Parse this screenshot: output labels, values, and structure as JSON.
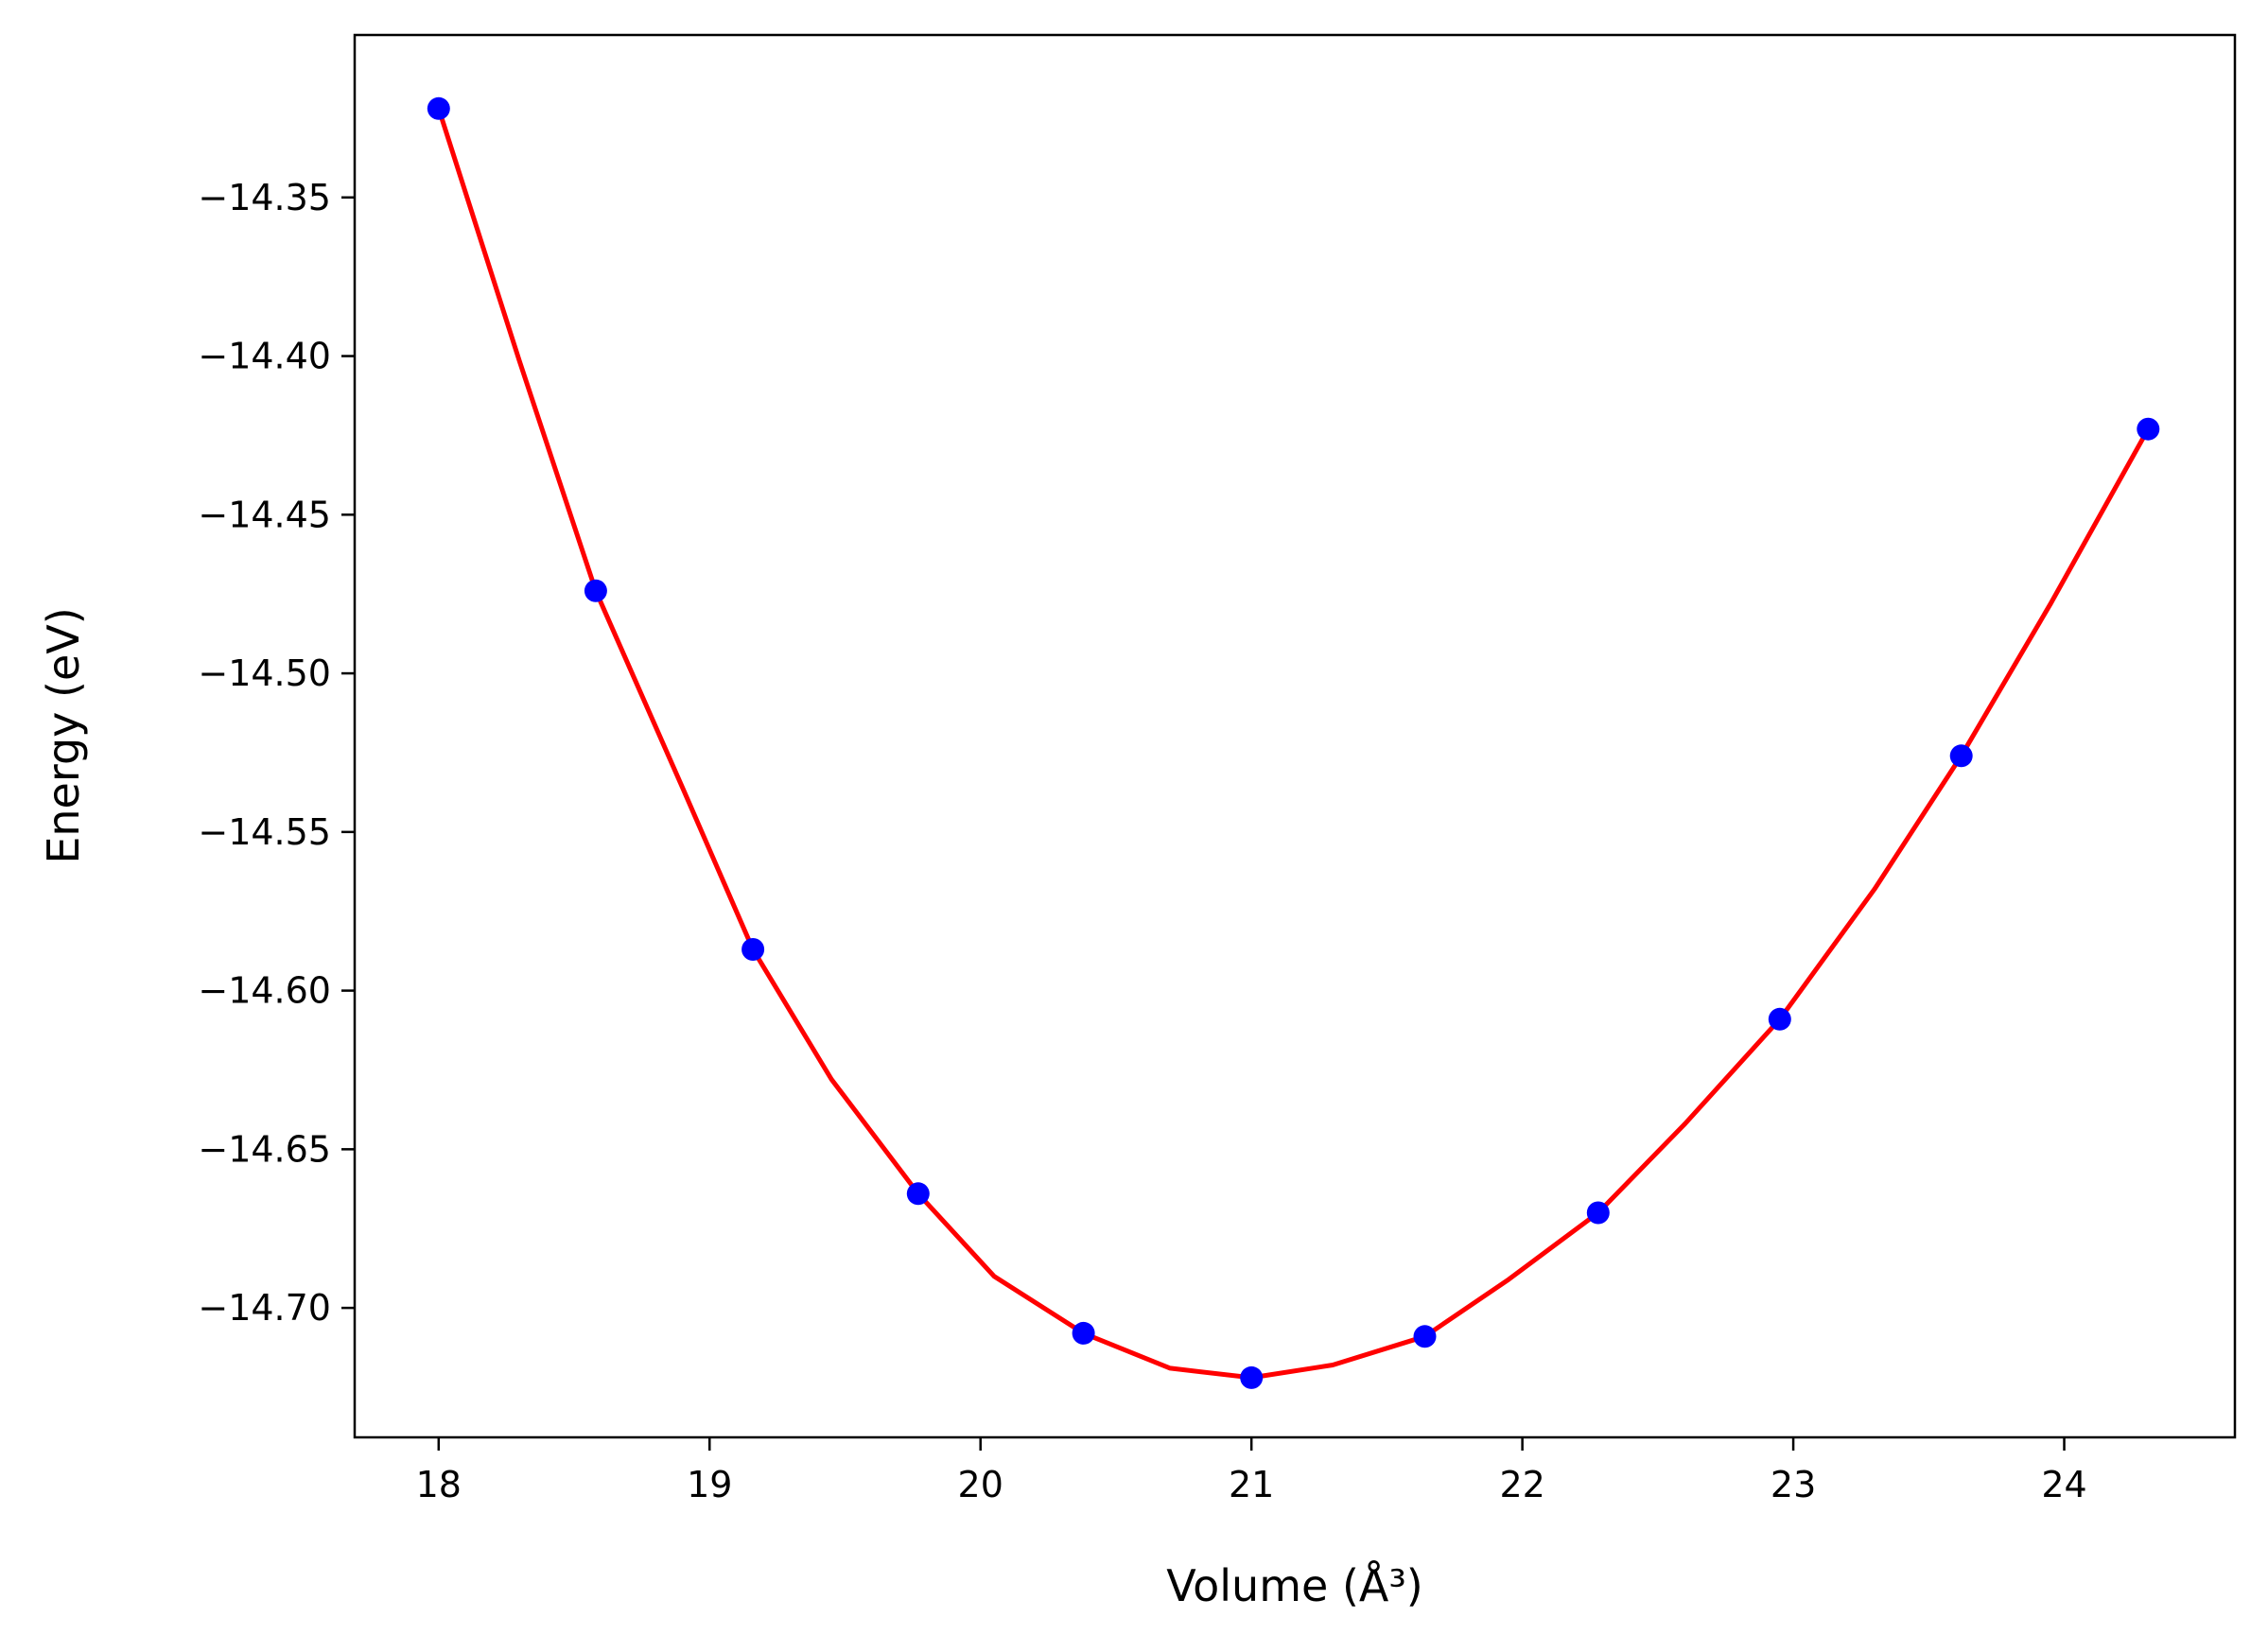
{
  "chart_data": {
    "type": "scatter",
    "title": "",
    "xlabel": "Volume (Å³)",
    "ylabel": "Energy (eV)",
    "xlim": [
      17.69,
      24.63
    ],
    "ylim": [
      -14.7408,
      -14.2988
    ],
    "x_ticks": [
      {
        "value": 18,
        "label": "18"
      },
      {
        "value": 19,
        "label": "19"
      },
      {
        "value": 20,
        "label": "20"
      },
      {
        "value": 21,
        "label": "21"
      },
      {
        "value": 22,
        "label": "22"
      },
      {
        "value": 23,
        "label": "23"
      },
      {
        "value": 24,
        "label": "24"
      }
    ],
    "y_ticks": [
      {
        "value": -14.35,
        "label": "−14.35"
      },
      {
        "value": -14.4,
        "label": "−14.40"
      },
      {
        "value": -14.45,
        "label": "−14.45"
      },
      {
        "value": -14.5,
        "label": "−14.50"
      },
      {
        "value": -14.55,
        "label": "−14.55"
      },
      {
        "value": -14.6,
        "label": "−14.60"
      },
      {
        "value": -14.65,
        "label": "−14.65"
      },
      {
        "value": -14.7,
        "label": "−14.70"
      }
    ],
    "grid": false,
    "legend": "none",
    "series": [
      {
        "kind": "line",
        "color": "#ff0000",
        "x": [
          18.0,
          18.3,
          18.58,
          18.9,
          19.16,
          19.45,
          19.77,
          20.05,
          20.38,
          20.7,
          21.0,
          21.3,
          21.64,
          21.95,
          22.28,
          22.6,
          22.95,
          23.3,
          23.62,
          23.95,
          24.31
        ],
        "y": [
          -14.322,
          -14.402,
          -14.474,
          -14.536,
          -14.587,
          -14.628,
          -14.664,
          -14.69,
          -14.708,
          -14.719,
          -14.722,
          -14.718,
          -14.709,
          -14.691,
          -14.67,
          -14.642,
          -14.609,
          -14.568,
          -14.526,
          -14.478,
          -14.423
        ]
      },
      {
        "kind": "points",
        "color": "#0000ff",
        "x": [
          18.0,
          18.58,
          19.16,
          19.77,
          20.38,
          21.0,
          21.64,
          22.28,
          22.95,
          23.62,
          24.31
        ],
        "y": [
          -14.322,
          -14.474,
          -14.587,
          -14.664,
          -14.708,
          -14.722,
          -14.709,
          -14.67,
          -14.609,
          -14.526,
          -14.423
        ]
      }
    ]
  }
}
